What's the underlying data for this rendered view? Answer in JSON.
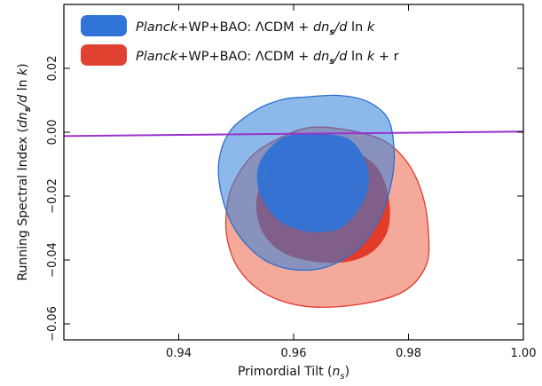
{
  "chart_data": {
    "type": "contour",
    "xlabel": "Primordial Tilt (n_s)",
    "ylabel": "Running Spectral Index (dn_s/d ln k)",
    "xlim": [
      0.92,
      1.0
    ],
    "ylim": [
      -0.065,
      0.04
    ],
    "xticks": [
      0.94,
      0.96,
      0.98,
      1.0
    ],
    "xtick_labels": [
      "0.94",
      "0.96",
      "0.98",
      "1.00"
    ],
    "yticks": [
      -0.06,
      -0.04,
      -0.02,
      0.0,
      0.02
    ],
    "ytick_labels": [
      "−0.06",
      "−0.04",
      "−0.02",
      "0.00",
      "0.02"
    ],
    "legend_placement": "top-left",
    "legend": [
      {
        "planck": "Planck",
        "prefix": "+WP+BAO: ΛCDM + ",
        "dn": "dn",
        "s": "s",
        "d": "/d",
        "ln": " ln ",
        "k": "k",
        "suffix": "",
        "color": "#2f74d6"
      },
      {
        "planck": "Planck",
        "prefix": "+WP+BAO: ΛCDM + ",
        "dn": "dn",
        "s": "s",
        "d": "/d",
        "ln": " ln ",
        "k": "k",
        "suffix": " + r",
        "color": "#e04232"
      }
    ],
    "reference_line": {
      "x": [
        0.92,
        1.0
      ],
      "y": [
        -0.0012,
        0.0002
      ],
      "color": "#9933cc"
    },
    "series": [
      {
        "name": "Planck+WP+BAO: ΛCDM + dn_s/d ln k + r",
        "outer_fill": "#f4a99a",
        "outer_stroke": "#e03a2a",
        "inner_fill": "#e23b2a",
        "outer_95": [
          [
            0.963,
            0.0015
          ],
          [
            0.97,
            0.0005
          ],
          [
            0.976,
            -0.003
          ],
          [
            0.98,
            -0.01
          ],
          [
            0.9825,
            -0.02
          ],
          [
            0.9835,
            -0.032
          ],
          [
            0.983,
            -0.042
          ],
          [
            0.979,
            -0.05
          ],
          [
            0.971,
            -0.054
          ],
          [
            0.962,
            -0.0545
          ],
          [
            0.955,
            -0.0505
          ],
          [
            0.9505,
            -0.043
          ],
          [
            0.9485,
            -0.034
          ],
          [
            0.9483,
            -0.025
          ],
          [
            0.9495,
            -0.016
          ],
          [
            0.953,
            -0.007
          ],
          [
            0.958,
            -0.0015
          ]
        ],
        "inner_68": [
          [
            0.964,
            -0.004
          ],
          [
            0.97,
            -0.0055
          ],
          [
            0.9745,
            -0.011
          ],
          [
            0.9765,
            -0.02
          ],
          [
            0.9765,
            -0.03
          ],
          [
            0.974,
            -0.037
          ],
          [
            0.9695,
            -0.0405
          ],
          [
            0.9635,
            -0.0405
          ],
          [
            0.958,
            -0.0375
          ],
          [
            0.9545,
            -0.031
          ],
          [
            0.9535,
            -0.022
          ],
          [
            0.955,
            -0.0135
          ],
          [
            0.9585,
            -0.0065
          ]
        ]
      },
      {
        "name": "Planck+WP+BAO: ΛCDM + dn_s/d ln k",
        "outer_fill": "#2f7fd8",
        "outer_alpha": 0.55,
        "outer_stroke": "#2a6fcf",
        "inner_fill": "#2f72d4",
        "inner_alpha": 0.95,
        "outer_95": [
          [
            0.962,
            0.011
          ],
          [
            0.968,
            0.0115
          ],
          [
            0.973,
            0.0095
          ],
          [
            0.9765,
            0.004
          ],
          [
            0.9775,
            -0.006
          ],
          [
            0.977,
            -0.016
          ],
          [
            0.975,
            -0.027
          ],
          [
            0.9715,
            -0.036
          ],
          [
            0.966,
            -0.042
          ],
          [
            0.96,
            -0.043
          ],
          [
            0.9545,
            -0.0395
          ],
          [
            0.95,
            -0.031
          ],
          [
            0.9475,
            -0.02
          ],
          [
            0.947,
            -0.009
          ],
          [
            0.949,
            0.0005
          ],
          [
            0.9535,
            0.007
          ],
          [
            0.958,
            0.0102
          ]
        ],
        "inner_68": [
          [
            0.964,
            -0.0005
          ],
          [
            0.9695,
            -0.002
          ],
          [
            0.9725,
            -0.009
          ],
          [
            0.973,
            -0.017
          ],
          [
            0.971,
            -0.025
          ],
          [
            0.9675,
            -0.0305
          ],
          [
            0.962,
            -0.031
          ],
          [
            0.957,
            -0.027
          ],
          [
            0.954,
            -0.0185
          ],
          [
            0.954,
            -0.01
          ],
          [
            0.957,
            -0.003
          ],
          [
            0.9605,
            -0.0005
          ]
        ]
      }
    ]
  }
}
